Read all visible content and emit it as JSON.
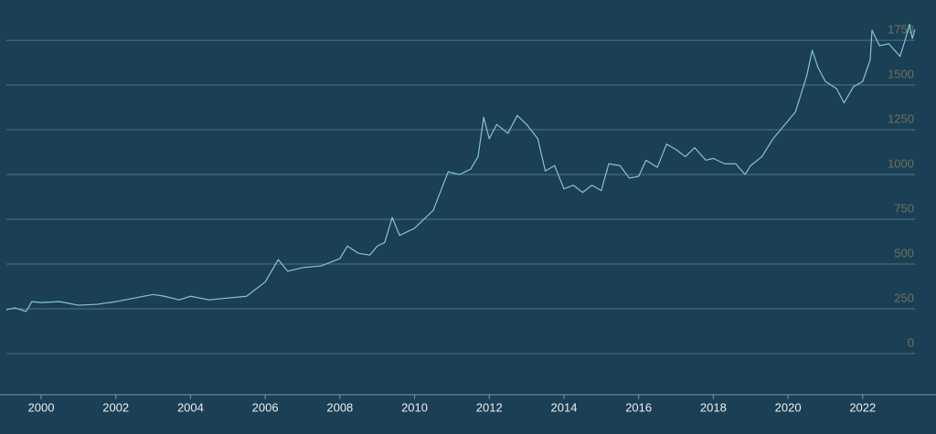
{
  "chart_data": {
    "type": "line",
    "x": [
      1999.07,
      1999.3,
      1999.6,
      1999.75,
      2000.0,
      2000.5,
      2001.0,
      2001.5,
      2002.0,
      2002.5,
      2003.0,
      2003.3,
      2003.7,
      2004.0,
      2004.5,
      2005.0,
      2005.5,
      2006.0,
      2006.35,
      2006.6,
      2007.0,
      2007.5,
      2008.0,
      2008.2,
      2008.5,
      2008.8,
      2009.0,
      2009.2,
      2009.4,
      2009.6,
      2010.0,
      2010.5,
      2010.9,
      2011.2,
      2011.5,
      2011.7,
      2011.85,
      2012.0,
      2012.2,
      2012.5,
      2012.75,
      2013.0,
      2013.3,
      2013.5,
      2013.75,
      2014.0,
      2014.25,
      2014.5,
      2014.75,
      2015.0,
      2015.2,
      2015.5,
      2015.75,
      2016.0,
      2016.2,
      2016.5,
      2016.75,
      2017.0,
      2017.25,
      2017.5,
      2017.8,
      2018.0,
      2018.3,
      2018.6,
      2018.85,
      2019.0,
      2019.3,
      2019.6,
      2020.0,
      2020.2,
      2020.5,
      2020.65,
      2020.8,
      2021.0,
      2021.3,
      2021.5,
      2021.75,
      2022.0,
      2022.2,
      2022.25,
      2022.45,
      2022.7,
      2023.0,
      2023.15,
      2023.25,
      2023.33,
      2023.4
    ],
    "series": [
      {
        "color": "#86c6cf",
        "values": [
          245,
          255,
          235,
          290,
          285,
          290,
          270,
          275,
          290,
          310,
          330,
          320,
          300,
          320,
          300,
          310,
          320,
          400,
          525,
          460,
          480,
          490,
          530,
          600,
          560,
          550,
          600,
          620,
          760,
          660,
          700,
          800,
          1015,
          1000,
          1030,
          1100,
          1320,
          1200,
          1280,
          1230,
          1330,
          1280,
          1200,
          1020,
          1050,
          920,
          940,
          900,
          940,
          910,
          1060,
          1050,
          980,
          990,
          1080,
          1040,
          1170,
          1140,
          1100,
          1150,
          1080,
          1090,
          1060,
          1060,
          1000,
          1050,
          1100,
          1200,
          1300,
          1350,
          1550,
          1694,
          1600,
          1520,
          1480,
          1400,
          1490,
          1520,
          1640,
          1806,
          1720,
          1730,
          1660,
          1760,
          1840,
          1760,
          1810
        ]
      }
    ],
    "xlim": [
      1999.07,
      2023.4
    ],
    "xticks": [
      2000,
      2002,
      2004,
      2006,
      2008,
      2010,
      2012,
      2014,
      2016,
      2018,
      2020,
      2022
    ],
    "ylim": [
      -230,
      1975
    ],
    "yticks": [
      0,
      250,
      500,
      750,
      1000,
      1250,
      1500,
      1750
    ],
    "grid": true
  }
}
